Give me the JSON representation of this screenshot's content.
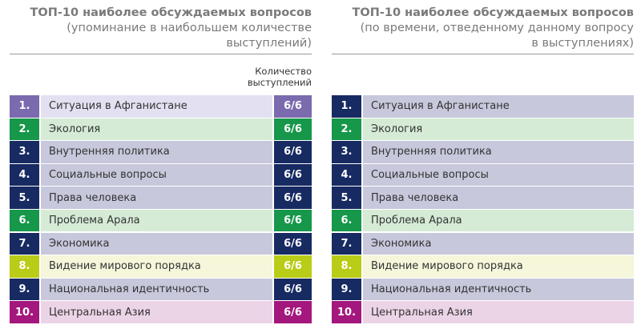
{
  "colors": {
    "purple": [
      "#7b6aae",
      "#e3e0f1"
    ],
    "green": [
      "#16974a",
      "#d5ebd6"
    ],
    "navy": [
      "#172a62",
      "#c7c8dc"
    ],
    "lime": [
      "#b9cc17",
      "#f5f6da"
    ],
    "magenta": [
      "#a4177d",
      "#ecd4e7"
    ]
  },
  "left": {
    "title": "ТОП-10 наиболее обсуждаемых вопросов",
    "subtitle1": "(упоминание в наибольшем количестве",
    "subtitle2": "выступлений)",
    "col1": "Количество",
    "col2": "выступлений",
    "rows": [
      {
        "num": "1.",
        "label": "Ситуация в Афганистане",
        "value": "6/6",
        "color": "purple"
      },
      {
        "num": "2.",
        "label": "Экология",
        "value": "6/6",
        "color": "green"
      },
      {
        "num": "3.",
        "label": "Внутренняя политика",
        "value": "6/6",
        "color": "navy"
      },
      {
        "num": "4.",
        "label": "Социальные вопросы",
        "value": "6/6",
        "color": "navy"
      },
      {
        "num": "5.",
        "label": "Права человека",
        "value": "6/6",
        "color": "navy"
      },
      {
        "num": "6.",
        "label": "Проблема Арала",
        "value": "6/6",
        "color": "green"
      },
      {
        "num": "7.",
        "label": "Экономика",
        "value": "6/6",
        "color": "navy"
      },
      {
        "num": "8.",
        "label": "Видение мирового порядка",
        "value": "6/6",
        "color": "lime"
      },
      {
        "num": "9.",
        "label": "Национальная идентичность",
        "value": "6/6",
        "color": "navy"
      },
      {
        "num": "10.",
        "label": "Центральная Азия",
        "value": "6/6",
        "color": "magenta"
      }
    ]
  },
  "right": {
    "title": "ТОП-10 наиболее обсуждаемых вопросов",
    "subtitle1": "(по времени, отведенному данному вопросу",
    "subtitle2": "в выступлениях)",
    "rows": [
      {
        "num": "1.",
        "label": "Ситуация в Афганистане",
        "color": "navy"
      },
      {
        "num": "2.",
        "label": "Экология",
        "color": "green"
      },
      {
        "num": "3.",
        "label": "Внутренняя политика",
        "color": "navy"
      },
      {
        "num": "4.",
        "label": "Социальные вопросы",
        "color": "navy"
      },
      {
        "num": "5.",
        "label": "Права человека",
        "color": "navy"
      },
      {
        "num": "6.",
        "label": "Проблема Арала",
        "color": "green"
      },
      {
        "num": "7.",
        "label": "Экономика",
        "color": "navy"
      },
      {
        "num": "8.",
        "label": "Видение мирового порядка",
        "color": "lime"
      },
      {
        "num": "9.",
        "label": "Национальная идентичность",
        "color": "navy"
      },
      {
        "num": "10.",
        "label": "Центральная Азия",
        "color": "magenta"
      }
    ]
  }
}
